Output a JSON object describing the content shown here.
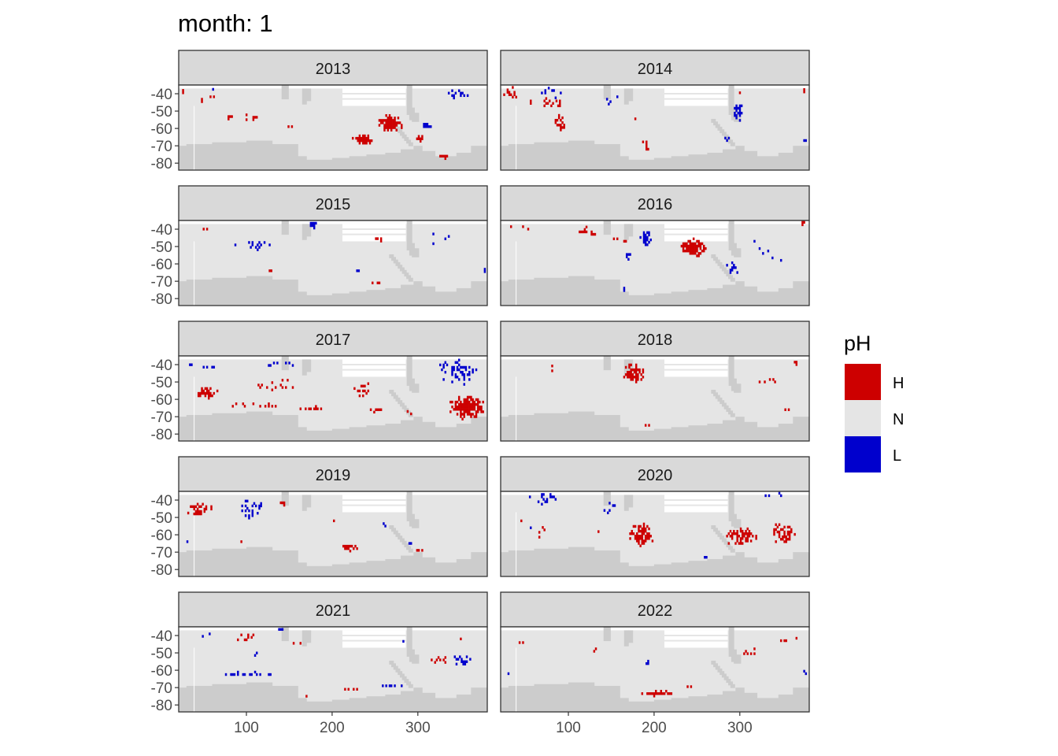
{
  "chart_data": {
    "type": "heatmap",
    "title": "month: 1",
    "facet_labels": [
      "2013",
      "2014",
      "2015",
      "2016",
      "2017",
      "2018",
      "2019",
      "2020",
      "2021",
      "2022"
    ],
    "facet_grid": {
      "rows": 5,
      "cols": 2
    },
    "xlim": [
      21,
      381
    ],
    "ylim": [
      -84,
      -35
    ],
    "x_ticks": [
      100,
      200,
      300
    ],
    "y_ticks": [
      -40,
      -50,
      -60,
      -70,
      -80
    ],
    "x_tick_labels": [
      "100",
      "200",
      "300"
    ],
    "y_tick_labels": [
      "-40",
      "-50",
      "-60",
      "-70",
      "-80"
    ],
    "legend": {
      "title": "pH",
      "position": "right",
      "items": [
        {
          "label": "H",
          "color": "#cd0000"
        },
        {
          "label": "N",
          "color": "#e5e5e5"
        },
        {
          "label": "L",
          "color": "#0000cd"
        }
      ]
    },
    "colors": {
      "land": "#cccccc",
      "ocean": "#e5e5e5",
      "H": "#cd0000",
      "L": "#0000cd"
    },
    "blobs": {
      "2013": [
        {
          "c": "H",
          "x": 267,
          "y": -58,
          "w": 30,
          "h": 10,
          "d": 0.95
        },
        {
          "c": "H",
          "x": 235,
          "y": -67,
          "w": 24,
          "h": 7,
          "d": 0.85
        },
        {
          "c": "H",
          "x": 106,
          "y": -54,
          "w": 22,
          "h": 6,
          "d": 0.3
        },
        {
          "c": "H",
          "x": 80,
          "y": -55,
          "w": 24,
          "h": 6,
          "d": 0.15
        },
        {
          "c": "H",
          "x": 300,
          "y": -66,
          "w": 16,
          "h": 4,
          "d": 0.5
        },
        {
          "c": "H",
          "x": 55,
          "y": -45,
          "w": 40,
          "h": 6,
          "d": 0.06
        },
        {
          "c": "H",
          "x": 25,
          "y": -40,
          "w": 4,
          "h": 3,
          "d": 0.5
        },
        {
          "c": "H",
          "x": 152,
          "y": -60,
          "w": 16,
          "h": 2,
          "d": 0.6
        },
        {
          "c": "H",
          "x": 330,
          "y": -77,
          "w": 14,
          "h": 2,
          "d": 0.6
        },
        {
          "c": "L",
          "x": 310,
          "y": -59,
          "w": 12,
          "h": 4,
          "d": 0.8
        },
        {
          "c": "L",
          "x": 345,
          "y": -41,
          "w": 28,
          "h": 7,
          "d": 0.22
        },
        {
          "c": "L",
          "x": 330,
          "y": -37,
          "w": 8,
          "h": 3,
          "d": 0.3
        },
        {
          "c": "L",
          "x": 60,
          "y": -38,
          "w": 16,
          "h": 3,
          "d": 0.1
        }
      ],
      "2014": [
        {
          "c": "H",
          "x": 32,
          "y": -40,
          "w": 16,
          "h": 8,
          "d": 0.45
        },
        {
          "c": "H",
          "x": 90,
          "y": -57,
          "w": 16,
          "h": 9,
          "d": 0.65
        },
        {
          "c": "H",
          "x": 75,
          "y": -46,
          "w": 40,
          "h": 6,
          "d": 0.12
        },
        {
          "c": "H",
          "x": 190,
          "y": -70,
          "w": 12,
          "h": 8,
          "d": 0.4
        },
        {
          "c": "H",
          "x": 180,
          "y": -55,
          "w": 10,
          "h": 3,
          "d": 0.2
        },
        {
          "c": "H",
          "x": 300,
          "y": -40,
          "w": 10,
          "h": 3,
          "d": 0.15
        },
        {
          "c": "H",
          "x": 372,
          "y": -39,
          "w": 8,
          "h": 4,
          "d": 0.25
        },
        {
          "c": "L",
          "x": 298,
          "y": -51,
          "w": 14,
          "h": 10,
          "d": 0.75
        },
        {
          "c": "L",
          "x": 80,
          "y": -40,
          "w": 28,
          "h": 6,
          "d": 0.22
        },
        {
          "c": "L",
          "x": 150,
          "y": -45,
          "w": 24,
          "h": 6,
          "d": 0.1
        },
        {
          "c": "L",
          "x": 285,
          "y": -67,
          "w": 14,
          "h": 4,
          "d": 0.3
        },
        {
          "c": "L",
          "x": 375,
          "y": -68,
          "w": 6,
          "h": 2,
          "d": 0.6
        }
      ],
      "2015": [
        {
          "c": "H",
          "x": 60,
          "y": -40,
          "w": 30,
          "h": 4,
          "d": 0.1
        },
        {
          "c": "H",
          "x": 255,
          "y": -46,
          "w": 10,
          "h": 3,
          "d": 0.5
        },
        {
          "c": "H",
          "x": 130,
          "y": -65,
          "w": 12,
          "h": 2,
          "d": 0.6
        },
        {
          "c": "H",
          "x": 250,
          "y": -72,
          "w": 12,
          "h": 2,
          "d": 0.4
        },
        {
          "c": "L",
          "x": 177,
          "y": -38,
          "w": 10,
          "h": 4,
          "d": 0.7
        },
        {
          "c": "L",
          "x": 115,
          "y": -50,
          "w": 70,
          "h": 5,
          "d": 0.14
        },
        {
          "c": "L",
          "x": 325,
          "y": -45,
          "w": 44,
          "h": 8,
          "d": 0.08
        },
        {
          "c": "L",
          "x": 375,
          "y": -65,
          "w": 8,
          "h": 3,
          "d": 0.5
        },
        {
          "c": "L",
          "x": 230,
          "y": -65,
          "w": 8,
          "h": 2,
          "d": 0.4
        }
      ],
      "2016": [
        {
          "c": "H",
          "x": 245,
          "y": -51,
          "w": 32,
          "h": 10,
          "d": 0.9
        },
        {
          "c": "H",
          "x": 120,
          "y": -42,
          "w": 24,
          "h": 6,
          "d": 0.35
        },
        {
          "c": "H",
          "x": 45,
          "y": -40,
          "w": 30,
          "h": 4,
          "d": 0.15
        },
        {
          "c": "H",
          "x": 372,
          "y": -38,
          "w": 8,
          "h": 3,
          "d": 0.7
        },
        {
          "c": "H",
          "x": 160,
          "y": -47,
          "w": 20,
          "h": 4,
          "d": 0.12
        },
        {
          "c": "L",
          "x": 190,
          "y": -45,
          "w": 14,
          "h": 12,
          "d": 0.6
        },
        {
          "c": "L",
          "x": 290,
          "y": -63,
          "w": 16,
          "h": 8,
          "d": 0.45
        },
        {
          "c": "L",
          "x": 168,
          "y": -56,
          "w": 10,
          "h": 4,
          "d": 0.5
        },
        {
          "c": "L",
          "x": 330,
          "y": -50,
          "w": 44,
          "h": 12,
          "d": 0.06
        },
        {
          "c": "L",
          "x": 340,
          "y": -58,
          "w": 30,
          "h": 4,
          "d": 0.12
        },
        {
          "c": "L",
          "x": 165,
          "y": -75,
          "w": 6,
          "h": 2,
          "d": 0.4
        }
      ],
      "2017": [
        {
          "c": "H",
          "x": 53,
          "y": -57,
          "w": 28,
          "h": 6,
          "d": 0.8
        },
        {
          "c": "H",
          "x": 357,
          "y": -65,
          "w": 40,
          "h": 14,
          "d": 0.9
        },
        {
          "c": "H",
          "x": 175,
          "y": -66,
          "w": 30,
          "h": 3,
          "d": 0.7
        },
        {
          "c": "H",
          "x": 235,
          "y": -55,
          "w": 24,
          "h": 10,
          "d": 0.3
        },
        {
          "c": "H",
          "x": 130,
          "y": -53,
          "w": 50,
          "h": 10,
          "d": 0.14
        },
        {
          "c": "H",
          "x": 100,
          "y": -64,
          "w": 70,
          "h": 4,
          "d": 0.25
        },
        {
          "c": "H",
          "x": 250,
          "y": -67,
          "w": 16,
          "h": 2,
          "d": 0.6
        },
        {
          "c": "H",
          "x": 290,
          "y": -68,
          "w": 10,
          "h": 2,
          "d": 0.5
        },
        {
          "c": "L",
          "x": 345,
          "y": -45,
          "w": 56,
          "h": 14,
          "d": 0.28
        },
        {
          "c": "L",
          "x": 50,
          "y": -41,
          "w": 50,
          "h": 5,
          "d": 0.1
        },
        {
          "c": "L",
          "x": 140,
          "y": -40,
          "w": 50,
          "h": 5,
          "d": 0.12
        },
        {
          "c": "L",
          "x": 120,
          "y": -37,
          "w": 10,
          "h": 2,
          "d": 0.4
        }
      ],
      "2018": [
        {
          "c": "H",
          "x": 175,
          "y": -46,
          "w": 26,
          "h": 12,
          "d": 0.75
        },
        {
          "c": "H",
          "x": 330,
          "y": -50,
          "w": 36,
          "h": 4,
          "d": 0.2
        },
        {
          "c": "H",
          "x": 80,
          "y": -42,
          "w": 4,
          "h": 10,
          "d": 0.5
        },
        {
          "c": "H",
          "x": 365,
          "y": -40,
          "w": 8,
          "h": 4,
          "d": 0.2
        },
        {
          "c": "H",
          "x": 190,
          "y": -76,
          "w": 10,
          "h": 2,
          "d": 0.4
        },
        {
          "c": "H",
          "x": 355,
          "y": -67,
          "w": 14,
          "h": 2,
          "d": 0.3
        },
        {
          "c": "L",
          "x": 200,
          "y": -47,
          "w": 12,
          "h": 4,
          "d": 0.25
        },
        {
          "c": "L",
          "x": 40,
          "y": -40,
          "w": 16,
          "h": 3,
          "d": 0.15
        },
        {
          "c": "L",
          "x": 230,
          "y": -52,
          "w": 6,
          "h": 2,
          "d": 0.4
        }
      ],
      "2019": [
        {
          "c": "H",
          "x": 45,
          "y": -46,
          "w": 30,
          "h": 8,
          "d": 0.45
        },
        {
          "c": "H",
          "x": 140,
          "y": -42,
          "w": 14,
          "h": 6,
          "d": 0.4
        },
        {
          "c": "H",
          "x": 195,
          "y": -52,
          "w": 20,
          "h": 4,
          "d": 0.12
        },
        {
          "c": "H",
          "x": 220,
          "y": -68,
          "w": 20,
          "h": 4,
          "d": 0.55
        },
        {
          "c": "H",
          "x": 30,
          "y": -48,
          "w": 6,
          "h": 3,
          "d": 0.4
        },
        {
          "c": "H",
          "x": 90,
          "y": -65,
          "w": 10,
          "h": 2,
          "d": 0.5
        },
        {
          "c": "H",
          "x": 300,
          "y": -70,
          "w": 16,
          "h": 2,
          "d": 0.3
        },
        {
          "c": "L",
          "x": 105,
          "y": -46,
          "w": 30,
          "h": 10,
          "d": 0.45
        },
        {
          "c": "L",
          "x": 30,
          "y": -65,
          "w": 8,
          "h": 2,
          "d": 0.6
        },
        {
          "c": "L",
          "x": 260,
          "y": -55,
          "w": 10,
          "h": 4,
          "d": 0.1
        },
        {
          "c": "L",
          "x": 290,
          "y": -66,
          "w": 6,
          "h": 2,
          "d": 0.5
        }
      ],
      "2020": [
        {
          "c": "H",
          "x": 185,
          "y": -60,
          "w": 32,
          "h": 14,
          "d": 0.55
        },
        {
          "c": "H",
          "x": 300,
          "y": -62,
          "w": 40,
          "h": 10,
          "d": 0.5
        },
        {
          "c": "H",
          "x": 350,
          "y": -60,
          "w": 30,
          "h": 12,
          "d": 0.42
        },
        {
          "c": "H",
          "x": 65,
          "y": -59,
          "w": 16,
          "h": 6,
          "d": 0.35
        },
        {
          "c": "H",
          "x": 135,
          "y": -60,
          "w": 10,
          "h": 6,
          "d": 0.2
        },
        {
          "c": "H",
          "x": 40,
          "y": -52,
          "w": 20,
          "h": 4,
          "d": 0.1
        },
        {
          "c": "L",
          "x": 70,
          "y": -40,
          "w": 40,
          "h": 6,
          "d": 0.22
        },
        {
          "c": "L",
          "x": 145,
          "y": -45,
          "w": 20,
          "h": 6,
          "d": 0.35
        },
        {
          "c": "L",
          "x": 340,
          "y": -38,
          "w": 30,
          "h": 3,
          "d": 0.2
        },
        {
          "c": "L",
          "x": 260,
          "y": -74,
          "w": 8,
          "h": 2,
          "d": 0.4
        },
        {
          "c": "L",
          "x": 55,
          "y": -57,
          "w": 8,
          "h": 2,
          "d": 0.4
        }
      ],
      "2021": [
        {
          "c": "H",
          "x": 100,
          "y": -42,
          "w": 30,
          "h": 5,
          "d": 0.3
        },
        {
          "c": "H",
          "x": 345,
          "y": -42,
          "w": 20,
          "h": 4,
          "d": 0.2
        },
        {
          "c": "H",
          "x": 325,
          "y": -55,
          "w": 20,
          "h": 5,
          "d": 0.25
        },
        {
          "c": "H",
          "x": 167,
          "y": -75,
          "w": 12,
          "h": 4,
          "d": 0.5
        },
        {
          "c": "H",
          "x": 220,
          "y": -72,
          "w": 20,
          "h": 2,
          "d": 0.3
        },
        {
          "c": "H",
          "x": 160,
          "y": -45,
          "w": 16,
          "h": 3,
          "d": 0.15
        },
        {
          "c": "L",
          "x": 350,
          "y": -55,
          "w": 24,
          "h": 7,
          "d": 0.5
        },
        {
          "c": "L",
          "x": 100,
          "y": -63,
          "w": 70,
          "h": 3,
          "d": 0.35
        },
        {
          "c": "L",
          "x": 140,
          "y": -37,
          "w": 10,
          "h": 3,
          "d": 0.6
        },
        {
          "c": "L",
          "x": 270,
          "y": -70,
          "w": 28,
          "h": 2,
          "d": 0.6
        },
        {
          "c": "L",
          "x": 60,
          "y": -41,
          "w": 40,
          "h": 3,
          "d": 0.1
        },
        {
          "c": "L",
          "x": 280,
          "y": -43,
          "w": 12,
          "h": 2,
          "d": 0.4
        },
        {
          "c": "L",
          "x": 108,
          "y": -52,
          "w": 10,
          "h": 3,
          "d": 0.3
        }
      ],
      "2022": [
        {
          "c": "H",
          "x": 205,
          "y": -74,
          "w": 40,
          "h": 3,
          "d": 0.75
        },
        {
          "c": "H",
          "x": 45,
          "y": -45,
          "w": 30,
          "h": 5,
          "d": 0.1
        },
        {
          "c": "H",
          "x": 130,
          "y": -50,
          "w": 30,
          "h": 5,
          "d": 0.1
        },
        {
          "c": "H",
          "x": 355,
          "y": -43,
          "w": 40,
          "h": 4,
          "d": 0.15
        },
        {
          "c": "H",
          "x": 310,
          "y": -50,
          "w": 20,
          "h": 5,
          "d": 0.1
        },
        {
          "c": "H",
          "x": 240,
          "y": -70,
          "w": 20,
          "h": 3,
          "d": 0.15
        },
        {
          "c": "L",
          "x": 27,
          "y": -62,
          "w": 8,
          "h": 4,
          "d": 0.4
        },
        {
          "c": "L",
          "x": 190,
          "y": -58,
          "w": 8,
          "h": 6,
          "d": 0.3
        },
        {
          "c": "L",
          "x": 375,
          "y": -62,
          "w": 6,
          "h": 4,
          "d": 0.4
        }
      ]
    }
  }
}
